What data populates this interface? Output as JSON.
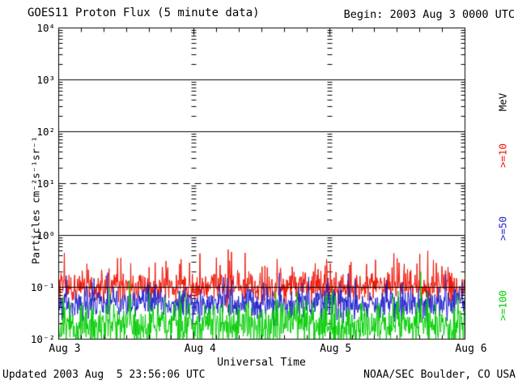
{
  "header": {
    "title": "GOES11 Proton Flux (5 minute data)",
    "begin": "Begin: 2003 Aug 3 0000 UTC"
  },
  "footer": {
    "updated": "Updated 2003 Aug  5 23:56:06 UTC",
    "credit": "NOAA/SEC Boulder, CO USA"
  },
  "chart_data": {
    "type": "line",
    "title": "GOES11 Proton Flux (5 minute data)",
    "begin_time": "2003 Aug 3 0000 UTC",
    "x_axis": {
      "label": "Universal Time",
      "tick_labels": [
        "Aug 3",
        "Aug 4",
        "Aug 5",
        "Aug 6"
      ],
      "span_days": 3,
      "minor_tick_hours": 4
    },
    "y_axis": {
      "label": "Particles cm⁻²s⁻¹sr⁻¹",
      "scale": "log",
      "range": [
        0.01,
        10000
      ],
      "tick_labels": [
        "10⁴",
        "10³",
        "10²",
        "10¹",
        "10⁰",
        "10⁻¹",
        "10⁻²"
      ],
      "tick_exponents": [
        4,
        3,
        2,
        1,
        0,
        -1,
        -2
      ]
    },
    "grid": {
      "solid_decade_lines": [
        1000,
        100,
        1,
        0.1
      ],
      "dashed_decade_lines": [
        10
      ],
      "day_boundary_tick_columns": [
        "Aug 4",
        "Aug 5"
      ]
    },
    "unit": "MeV",
    "floor_flux": 0.01,
    "series": [
      {
        "label": ">=10",
        "energy": ">=10 MeV",
        "color": "#ee1100",
        "baseline_flux": 0.1,
        "approx_flux_range": [
          0.05,
          0.55
        ],
        "samples_per_day": 288,
        "noise": {
          "log_mean": -1.0,
          "log_sigma": 0.14,
          "spike_prob": 0.12,
          "spike_log_amp": [
            0.1,
            0.55
          ],
          "log_max": -0.26,
          "seed": 101
        }
      },
      {
        "label": ">=50",
        "energy": ">=50 MeV",
        "color": "#2222cc",
        "baseline_flux": 0.05,
        "approx_flux_range": [
          0.02,
          0.2
        ],
        "samples_per_day": 288,
        "noise": {
          "log_mean": -1.33,
          "log_sigma": 0.14,
          "spike_prob": 0.08,
          "spike_log_amp": [
            0.1,
            0.45
          ],
          "log_max": -0.72,
          "seed": 202
        }
      },
      {
        "label": ">=100",
        "energy": ">=100 MeV",
        "color": "#00cc00",
        "baseline_flux": 0.025,
        "approx_flux_range": [
          0.01,
          0.25
        ],
        "samples_per_day": 288,
        "noise": {
          "log_mean": -1.75,
          "log_sigma": 0.2,
          "spike_prob": 0.08,
          "spike_log_amp": [
            0.15,
            0.5
          ],
          "log_max": -0.75,
          "seed": 303
        },
        "events": [
          {
            "day": 2.67,
            "flux": 0.2
          }
        ]
      }
    ]
  }
}
